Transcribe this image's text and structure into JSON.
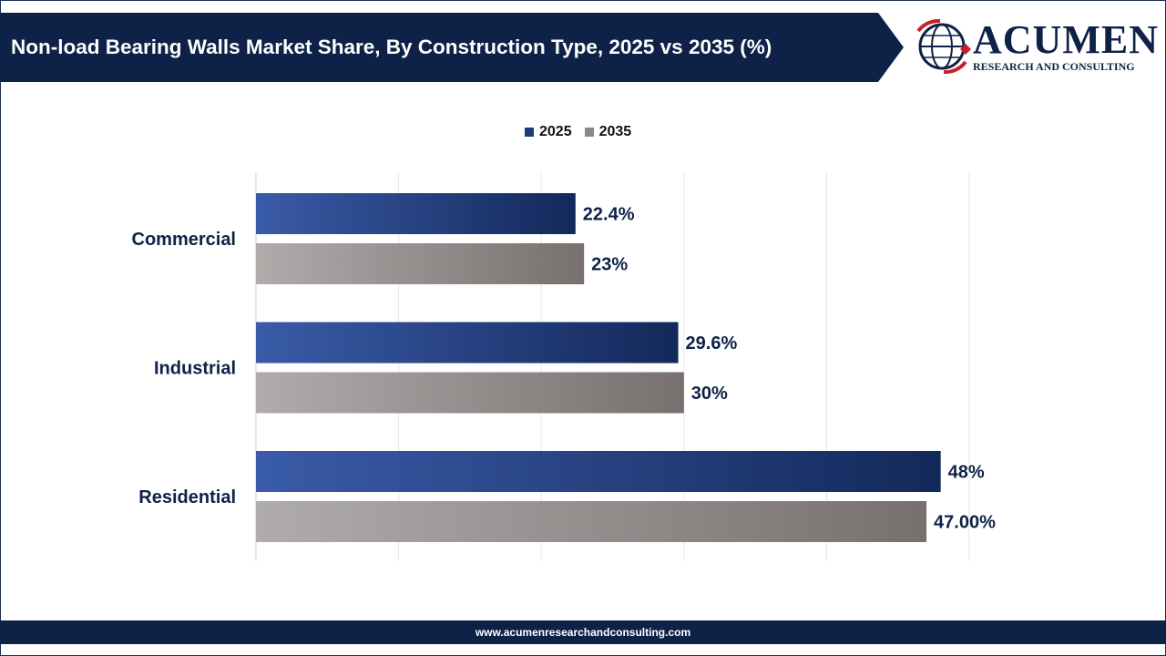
{
  "header": {
    "title": "Non-load Bearing Walls Market Share, By Construction Type, 2025 vs 2035 (%)"
  },
  "logo": {
    "name": "ACUMEN",
    "tagline": "RESEARCH AND CONSULTING",
    "icon": "globe-icon"
  },
  "footer": {
    "url": "www.acumenresearchandconsulting.com"
  },
  "colors": {
    "navy": "#0e2147",
    "series_2025_start": "#3a5ba8",
    "series_2025_end": "#13295a",
    "series_2035_start": "#b0acab",
    "series_2035_end": "#77706f"
  },
  "legend": {
    "position": "top-center",
    "items": [
      {
        "label": "2025",
        "color": "#1f3a75"
      },
      {
        "label": "2035",
        "color": "#8c8786"
      }
    ]
  },
  "chart_data": {
    "type": "bar",
    "orientation": "horizontal",
    "title": "Non-load Bearing Walls Market Share, By Construction Type, 2025 vs 2035 (%)",
    "categories": [
      "Commercial",
      "Industrial",
      "Residential"
    ],
    "series": [
      {
        "name": "2025",
        "values": [
          22.4,
          29.6,
          48
        ],
        "labels": [
          "22.4%",
          "29.6%",
          "48%"
        ]
      },
      {
        "name": "2035",
        "values": [
          23,
          30,
          47
        ],
        "labels": [
          "23%",
          "30%",
          "47.00%"
        ]
      }
    ],
    "xlim": [
      0,
      50
    ],
    "grid": true,
    "legend_position": "top-center"
  }
}
